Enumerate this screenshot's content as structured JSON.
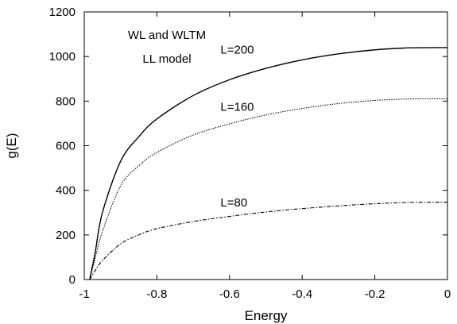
{
  "chart_data": {
    "type": "line",
    "title": "",
    "xlabel": "Energy",
    "ylabel": "g(E)",
    "xlim": [
      -1,
      0
    ],
    "ylim": [
      0,
      1200
    ],
    "xticks": [
      -1,
      -0.8,
      -0.6,
      -0.4,
      -0.2,
      0
    ],
    "xtick_labels": [
      "-1",
      "-0.8",
      "-0.6",
      "-0.4",
      "-0.2",
      "0"
    ],
    "yticks": [
      0,
      200,
      400,
      600,
      800,
      1000,
      1200
    ],
    "ytick_labels": [
      "0",
      "200",
      "400",
      "600",
      "800",
      "1000",
      "1200"
    ],
    "grid": false,
    "annotations": [
      "WL and WLTM",
      "LL model"
    ],
    "series": [
      {
        "name": "L=200",
        "style": "solid",
        "x": [
          -0.985,
          -0.97,
          -0.95,
          -0.9,
          -0.85,
          -0.8,
          -0.7,
          -0.6,
          -0.5,
          -0.4,
          -0.3,
          -0.2,
          -0.1,
          0
        ],
        "y": [
          0,
          120,
          300,
          530,
          640,
          720,
          825,
          896,
          947,
          985,
          1012,
          1030,
          1039,
          1040
        ]
      },
      {
        "name": "L=160",
        "style": "dotted",
        "x": [
          -0.985,
          -0.97,
          -0.95,
          -0.9,
          -0.85,
          -0.8,
          -0.7,
          -0.6,
          -0.5,
          -0.4,
          -0.3,
          -0.2,
          -0.1,
          0
        ],
        "y": [
          0,
          95,
          215,
          420,
          510,
          570,
          648,
          698,
          738,
          767,
          789,
          803,
          810,
          810
        ]
      },
      {
        "name": "L=80",
        "style": "dashdot",
        "x": [
          -0.985,
          -0.97,
          -0.95,
          -0.9,
          -0.85,
          -0.8,
          -0.7,
          -0.6,
          -0.5,
          -0.4,
          -0.3,
          -0.2,
          -0.1,
          0
        ],
        "y": [
          0,
          40,
          85,
          160,
          200,
          228,
          260,
          283,
          303,
          318,
          330,
          340,
          346,
          347
        ]
      }
    ],
    "series_labels": [
      {
        "text": "L=200",
        "x": -0.625,
        "y": 1030
      },
      {
        "text": "L=160",
        "x": -0.625,
        "y": 775
      },
      {
        "text": "L=80",
        "x": -0.625,
        "y": 345
      }
    ]
  }
}
